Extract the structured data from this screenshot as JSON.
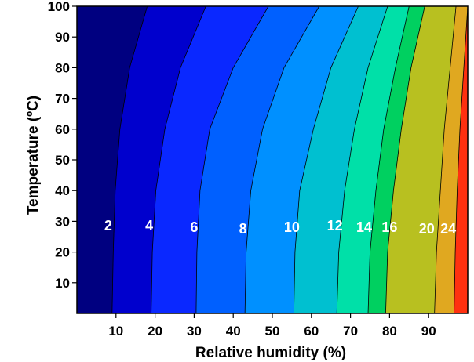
{
  "chart_data": {
    "type": "contour",
    "title": "",
    "xlabel": "Relative humidity (%)",
    "ylabel": "Temperature (ºC)",
    "xlim": [
      0,
      100
    ],
    "ylim": [
      0,
      100
    ],
    "x_ticks": [
      10,
      20,
      30,
      40,
      50,
      60,
      70,
      80,
      90
    ],
    "y_ticks": [
      10,
      20,
      30,
      40,
      50,
      60,
      70,
      80,
      90,
      100
    ],
    "grid": false,
    "legend": "none",
    "contour_levels": [
      {
        "level": "2",
        "color": "#000080",
        "boundary": [
          [
            9,
            0
          ],
          [
            9.3,
            20
          ],
          [
            9.8,
            40
          ],
          [
            11,
            60
          ],
          [
            13.5,
            80
          ],
          [
            18,
            100
          ]
        ]
      },
      {
        "level": "4",
        "color": "#0000cd",
        "boundary": [
          [
            19,
            0
          ],
          [
            19.3,
            20
          ],
          [
            20.2,
            40
          ],
          [
            22.5,
            60
          ],
          [
            26.5,
            80
          ],
          [
            33,
            100
          ]
        ]
      },
      {
        "level": "6",
        "color": "#0a28ff",
        "boundary": [
          [
            30.5,
            0
          ],
          [
            30.7,
            20
          ],
          [
            31.5,
            40
          ],
          [
            34,
            60
          ],
          [
            40,
            80
          ],
          [
            49,
            100
          ]
        ]
      },
      {
        "level": "8",
        "color": "#0060ff",
        "boundary": [
          [
            43,
            0
          ],
          [
            43.3,
            20
          ],
          [
            44.5,
            40
          ],
          [
            47.5,
            60
          ],
          [
            53,
            80
          ],
          [
            62,
            100
          ]
        ]
      },
      {
        "level": "10",
        "color": "#0090ff",
        "boundary": [
          [
            55.5,
            0
          ],
          [
            55.8,
            20
          ],
          [
            57,
            40
          ],
          [
            60.5,
            60
          ],
          [
            65,
            80
          ],
          [
            72,
            100
          ]
        ]
      },
      {
        "level": "12",
        "color": "#00c0d0",
        "boundary": [
          [
            66.5,
            0
          ],
          [
            67,
            20
          ],
          [
            68.5,
            40
          ],
          [
            71,
            60
          ],
          [
            74.5,
            80
          ],
          [
            79.5,
            100
          ]
        ]
      },
      {
        "level": "14",
        "color": "#00e0a8",
        "boundary": [
          [
            74.5,
            0
          ],
          [
            75,
            20
          ],
          [
            76.5,
            40
          ],
          [
            78.5,
            60
          ],
          [
            81.5,
            80
          ],
          [
            85,
            100
          ]
        ]
      },
      {
        "level": "16",
        "color": "#00d060",
        "boundary": [
          [
            79,
            0
          ],
          [
            79.5,
            20
          ],
          [
            81,
            40
          ],
          [
            83,
            60
          ],
          [
            85.5,
            80
          ],
          [
            89,
            100
          ]
        ]
      },
      {
        "level": "20",
        "color": "#b8c020",
        "boundary": [
          [
            91.5,
            0
          ],
          [
            92,
            20
          ],
          [
            93,
            40
          ],
          [
            94,
            60
          ],
          [
            95.5,
            80
          ],
          [
            97,
            100
          ]
        ]
      },
      {
        "level": "24",
        "color": "#e0a820",
        "boundary": [
          [
            96.5,
            0
          ],
          [
            96.8,
            20
          ],
          [
            97.3,
            40
          ],
          [
            98,
            60
          ],
          [
            99,
            80
          ],
          [
            100,
            100
          ]
        ]
      }
    ],
    "fill_colors": [
      "#000080",
      "#0000cd",
      "#0a28ff",
      "#0060ff",
      "#0090ff",
      "#00c0d0",
      "#00e0a8",
      "#00d060",
      "#b8c020",
      "#e0a820",
      "#ff3010",
      "#800000"
    ],
    "labels": [
      {
        "text": "2",
        "x": 8,
        "y": 27
      },
      {
        "text": "4",
        "x": 18.5,
        "y": 27
      },
      {
        "text": "6",
        "x": 30,
        "y": 26.5
      },
      {
        "text": "8",
        "x": 42.5,
        "y": 26
      },
      {
        "text": "10",
        "x": 55,
        "y": 26.5
      },
      {
        "text": "12",
        "x": 66,
        "y": 27
      },
      {
        "text": "14",
        "x": 73.5,
        "y": 26.5
      },
      {
        "text": "16",
        "x": 80,
        "y": 26.5
      },
      {
        "text": "20",
        "x": 89.5,
        "y": 26
      },
      {
        "text": "24",
        "x": 95,
        "y": 26
      }
    ]
  }
}
